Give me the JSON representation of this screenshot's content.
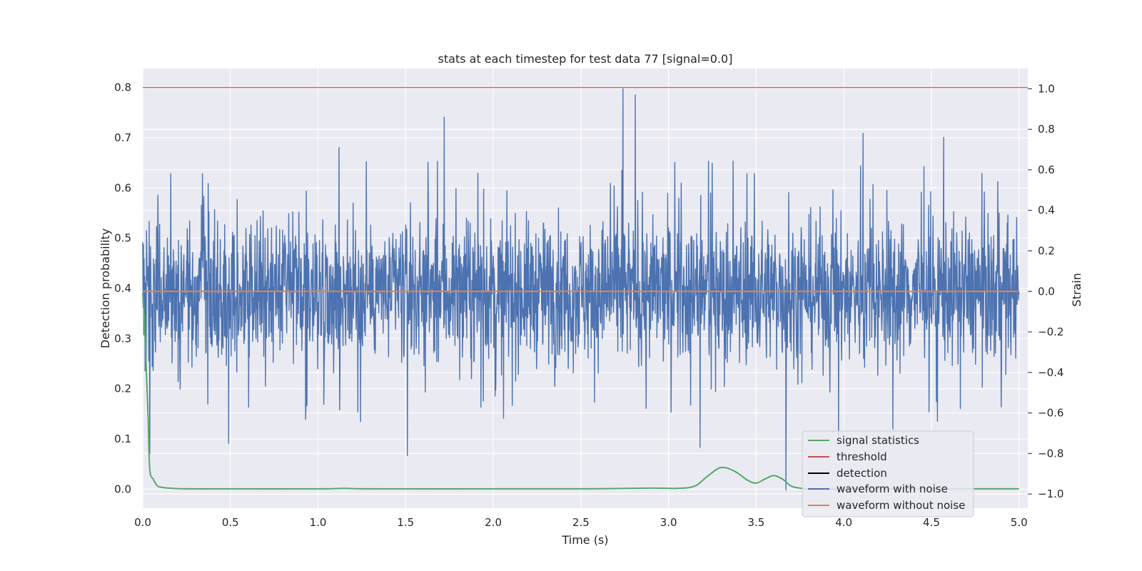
{
  "chart_data": {
    "type": "line",
    "title": "stats at each timestep for test data 77 [signal=0.0]",
    "xlabel": "Time (s)",
    "ylabel": "Detection probability",
    "y2label": "Strain",
    "xlim": [
      0.0,
      5.05
    ],
    "ylim": [
      -0.038,
      0.838
    ],
    "y2lim": [
      -1.07,
      1.1
    ],
    "x_ticks": [
      "0.0",
      "0.5",
      "1.0",
      "1.5",
      "2.0",
      "2.5",
      "3.0",
      "3.5",
      "4.0",
      "4.5",
      "5.0"
    ],
    "x_tick_values": [
      0.0,
      0.5,
      1.0,
      1.5,
      2.0,
      2.5,
      3.0,
      3.5,
      4.0,
      4.5,
      5.0
    ],
    "y_ticks": [
      "0.0",
      "0.1",
      "0.2",
      "0.3",
      "0.4",
      "0.5",
      "0.6",
      "0.7",
      "0.8"
    ],
    "y_tick_values": [
      0.0,
      0.1,
      0.2,
      0.3,
      0.4,
      0.5,
      0.6,
      0.7,
      0.8
    ],
    "y2_ticks": [
      "−1.0",
      "−0.8",
      "−0.6",
      "−0.4",
      "−0.2",
      "0.0",
      "0.2",
      "0.4",
      "0.6",
      "0.8",
      "1.0"
    ],
    "y2_tick_values": [
      -1.0,
      -0.8,
      -0.6,
      -0.4,
      -0.2,
      0.0,
      0.2,
      0.4,
      0.6,
      0.8,
      1.0
    ],
    "grid": true,
    "legend_position": "lower right",
    "series": [
      {
        "name": "signal statistics",
        "axis": "left",
        "color": "#55a868",
        "x": [
          0.0,
          0.01,
          0.02,
          0.03,
          0.04,
          0.06,
          0.08,
          0.1,
          0.15,
          0.2,
          0.3,
          0.5,
          1.0,
          1.15,
          1.3,
          2.0,
          2.5,
          2.9,
          3.05,
          3.15,
          3.22,
          3.3,
          3.38,
          3.45,
          3.5,
          3.55,
          3.6,
          3.65,
          3.7,
          3.75,
          3.8,
          4.0,
          4.5,
          5.0
        ],
        "y": [
          0.39,
          0.33,
          0.24,
          0.15,
          0.04,
          0.02,
          0.008,
          0.004,
          0.002,
          0.001,
          0.0005,
          0.0005,
          0.0005,
          0.0015,
          0.0005,
          0.0005,
          0.0005,
          0.002,
          0.0015,
          0.006,
          0.025,
          0.043,
          0.035,
          0.018,
          0.012,
          0.02,
          0.027,
          0.02,
          0.006,
          0.002,
          0.0005,
          0.0005,
          0.0005,
          0.0005
        ]
      },
      {
        "name": "threshold",
        "axis": "left",
        "color": "#c44e52",
        "x": [
          0.0,
          5.05
        ],
        "y": [
          0.8,
          0.8
        ]
      },
      {
        "name": "detection",
        "axis": "left",
        "color": "#000000",
        "x": [],
        "y": []
      },
      {
        "name": "waveform with noise",
        "axis": "right",
        "color": "#4c72b0",
        "x_range": [
          0.0,
          5.0
        ],
        "typical_range": [
          -0.3,
          0.3
        ],
        "peak_values": [
          {
            "x": 0.04,
            "y": -0.8
          },
          {
            "x": 0.16,
            "y": 0.58
          },
          {
            "x": 0.49,
            "y": -0.75
          },
          {
            "x": 1.12,
            "y": 0.71
          },
          {
            "x": 1.51,
            "y": -0.81
          },
          {
            "x": 1.72,
            "y": 0.86
          },
          {
            "x": 2.74,
            "y": 1.0
          },
          {
            "x": 2.81,
            "y": 0.97
          },
          {
            "x": 3.18,
            "y": -0.77
          },
          {
            "x": 3.67,
            "y": -0.98
          },
          {
            "x": 3.97,
            "y": -0.72
          },
          {
            "x": 4.11,
            "y": 0.78
          },
          {
            "x": 4.28,
            "y": -0.68
          },
          {
            "x": 4.57,
            "y": 0.76
          }
        ]
      },
      {
        "name": "waveform without noise",
        "axis": "right",
        "color": "#dd8452",
        "x": [
          0.0,
          5.0
        ],
        "y": [
          0.0,
          0.0
        ]
      }
    ]
  }
}
